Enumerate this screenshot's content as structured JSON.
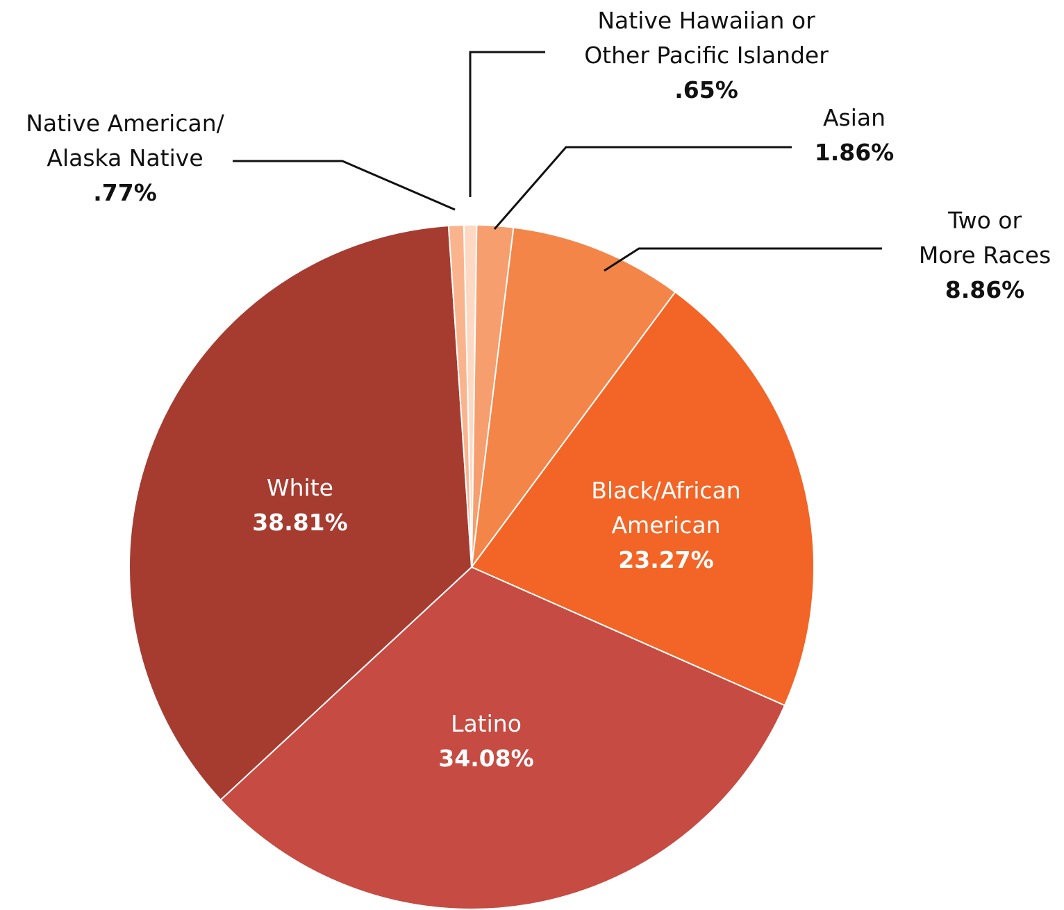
{
  "chart_data": {
    "type": "pie",
    "categories": [
      "Native Hawaiian or\nOther Pacific Islander",
      "Asian",
      "Two or\nMore Races",
      "Black/African\nAmerican",
      "Latino",
      "White",
      "Native American/\nAlaska Native"
    ],
    "values": [
      0.65,
      1.86,
      8.86,
      23.27,
      34.08,
      38.81,
      0.77
    ],
    "value_labels": [
      ".65%",
      "1.86%",
      "8.86%",
      "23.27%",
      "34.08%",
      "38.81%",
      ".77%"
    ],
    "colors": [
      "#fdd9c4",
      "#f69e6e",
      "#f48549",
      "#f26526",
      "#c64b42",
      "#a63c30",
      "#f9b48e"
    ]
  }
}
